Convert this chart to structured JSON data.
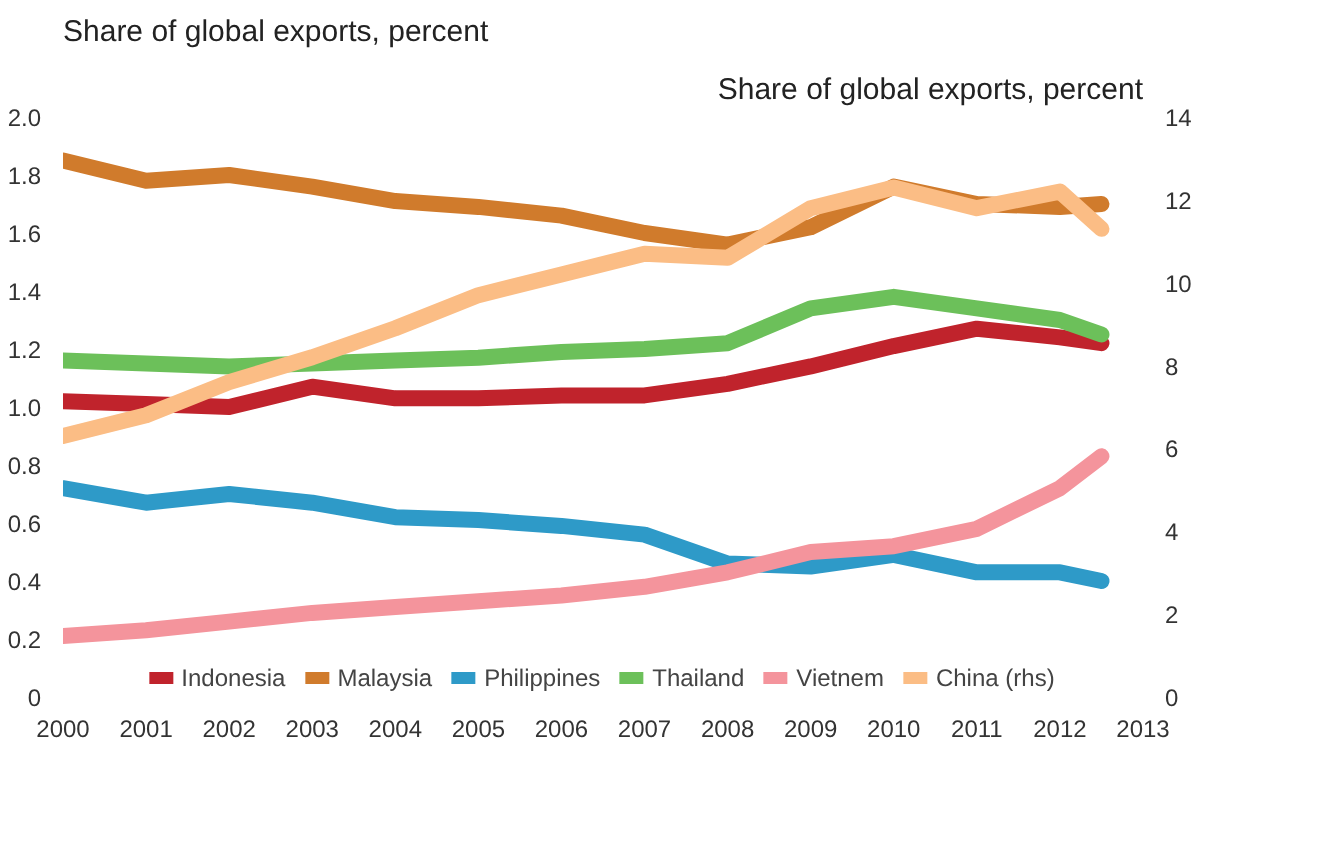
{
  "chart_data": {
    "type": "line",
    "xlabel": null,
    "ylabel": "Share of global exports, percent",
    "y2label": "Share of global exports, percent",
    "x": [
      2000,
      2001,
      2002,
      2003,
      2004,
      2005,
      2006,
      2007,
      2008,
      2009,
      2010,
      2011,
      2012,
      2012.5
    ],
    "xlim": [
      2000,
      2013
    ],
    "xticks": [
      2000,
      2001,
      2002,
      2003,
      2004,
      2005,
      2006,
      2007,
      2008,
      2009,
      2010,
      2011,
      2012,
      2013
    ],
    "ylim": [
      0,
      2.0
    ],
    "yticks": [
      0,
      {
        "value": 0.2,
        "label": "0.2"
      },
      {
        "value": 0.4,
        "label": "0.4"
      },
      {
        "value": 0.6,
        "label": "0.6"
      },
      {
        "value": 0.8,
        "label": "0.8"
      },
      {
        "value": 1.0,
        "label": "1.0"
      },
      {
        "value": 1.2,
        "label": "1.2"
      },
      {
        "value": 1.4,
        "label": "1.4"
      },
      {
        "value": 1.6,
        "label": "1.6"
      },
      {
        "value": 1.8,
        "label": "1.8"
      },
      {
        "value": 2.0,
        "label": "2.0"
      }
    ],
    "y2lim": [
      0,
      14
    ],
    "y2ticks": [
      0,
      2,
      4,
      6,
      8,
      10,
      12,
      14
    ],
    "grid": false,
    "legend": "bottom",
    "marker": "none",
    "line_style": "solid",
    "series": [
      {
        "name": "Indonesia",
        "color": "#c0232c",
        "values": [
          1.02,
          1.01,
          1.0,
          1.07,
          1.03,
          1.03,
          1.04,
          1.04,
          1.08,
          1.14,
          1.21,
          1.27,
          1.24,
          1.22
        ]
      },
      {
        "name": "Malaysia",
        "color": "#d07b2c",
        "values": [
          1.85,
          1.78,
          1.8,
          1.76,
          1.71,
          1.69,
          1.66,
          1.6,
          1.56,
          1.62,
          1.76,
          1.7,
          1.69,
          1.7
        ]
      },
      {
        "name": "Philippines",
        "color": "#2e9ac8",
        "values": [
          0.72,
          0.67,
          0.7,
          0.67,
          0.62,
          0.61,
          0.59,
          0.56,
          0.46,
          0.45,
          0.49,
          0.43,
          0.43,
          0.4
        ]
      },
      {
        "name": "Thailand",
        "color": "#6cc05a",
        "values": [
          1.16,
          1.15,
          1.14,
          1.15,
          1.16,
          1.17,
          1.19,
          1.2,
          1.22,
          1.34,
          1.38,
          1.34,
          1.3,
          1.25
        ]
      },
      {
        "name": "Vietnem",
        "color": "#f4949c",
        "values": [
          0.21,
          0.23,
          0.26,
          0.29,
          0.31,
          0.33,
          0.35,
          0.38,
          0.43,
          0.5,
          0.52,
          0.58,
          0.72,
          0.83
        ]
      },
      {
        "name": "China (rhs)",
        "color": "#fbbd85",
        "axis": "y2",
        "values": [
          6.3,
          6.8,
          7.6,
          8.2,
          8.9,
          9.7,
          10.2,
          10.7,
          10.6,
          11.8,
          12.3,
          11.8,
          12.2,
          11.3
        ]
      }
    ]
  }
}
